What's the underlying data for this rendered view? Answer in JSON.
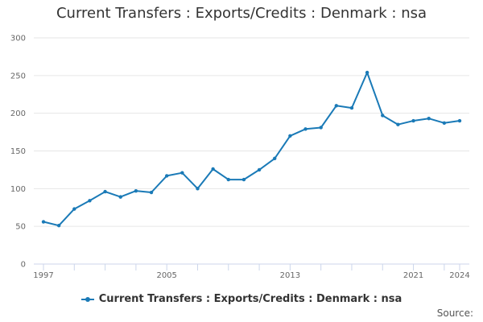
{
  "chart_data": {
    "type": "line",
    "title": "Current Transfers : Exports/Credits : Denmark : nsa",
    "xlabel": "",
    "ylabel": "",
    "x": [
      1997,
      1998,
      1999,
      2000,
      2001,
      2002,
      2003,
      2004,
      2005,
      2006,
      2007,
      2008,
      2009,
      2010,
      2011,
      2012,
      2013,
      2014,
      2015,
      2016,
      2017,
      2018,
      2019,
      2020,
      2021,
      2022,
      2023,
      2024
    ],
    "series": [
      {
        "name": "Current Transfers : Exports/Credits : Denmark : nsa",
        "values": [
          56,
          51,
          73,
          84,
          96,
          89,
          97,
          95,
          117,
          121,
          100,
          126,
          112,
          112,
          125,
          140,
          170,
          179,
          181,
          210,
          207,
          254,
          197,
          185,
          190,
          193,
          187,
          190
        ]
      }
    ],
    "ylim": [
      0,
      300
    ],
    "yticks": [
      0,
      50,
      100,
      150,
      200,
      250,
      300
    ],
    "xtick_labels": [
      1997,
      2005,
      2013,
      2021,
      2024
    ],
    "grid": true,
    "legend": "bottom-center",
    "colors": {
      "series": "#1a7ab7",
      "grid": "#e6e6e6",
      "axis": "#ccd6eb"
    }
  },
  "source_label": "Source:"
}
